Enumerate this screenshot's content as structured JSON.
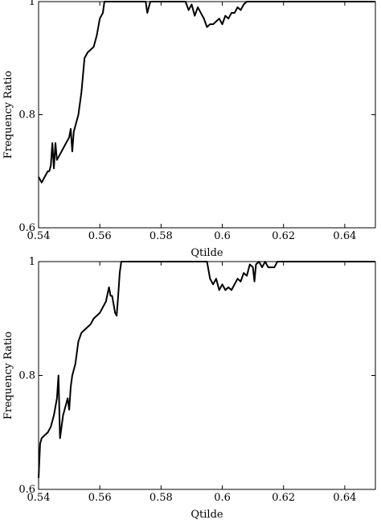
{
  "chart_data": [
    {
      "type": "line",
      "xlabel": "Qtilde",
      "ylabel": "Frequency Ratio",
      "xlim": [
        0.54,
        0.65
      ],
      "ylim": [
        0.6,
        1.0
      ],
      "xticks": [
        0.54,
        0.56,
        0.58,
        0.6,
        0.62,
        0.64
      ],
      "xtick_labels": [
        "0.54",
        "0.56",
        "0.58",
        "0.6",
        "0.62",
        "0.64"
      ],
      "yticks": [
        0.6,
        0.8,
        1.0
      ],
      "ytick_labels": [
        "0.6",
        "0.8",
        "1"
      ],
      "grid": false,
      "series": [
        {
          "x": [
            0.54,
            0.541,
            0.542,
            0.543,
            0.5435,
            0.544,
            0.5445,
            0.545,
            0.5455,
            0.546,
            0.547,
            0.548,
            0.549,
            0.55,
            0.5505,
            0.551,
            0.5515,
            0.552,
            0.553,
            0.554,
            0.555,
            0.556,
            0.557,
            0.558,
            0.559,
            0.56,
            0.561,
            0.5615,
            0.562,
            0.57,
            0.575,
            0.5755,
            0.576,
            0.5765,
            0.58,
            0.588,
            0.589,
            0.59,
            0.591,
            0.592,
            0.593,
            0.594,
            0.595,
            0.596,
            0.597,
            0.598,
            0.599,
            0.6,
            0.601,
            0.602,
            0.603,
            0.604,
            0.605,
            0.606,
            0.607,
            0.608,
            0.62,
            0.65
          ],
          "y": [
            0.69,
            0.68,
            0.69,
            0.7,
            0.7,
            0.71,
            0.75,
            0.705,
            0.75,
            0.72,
            0.73,
            0.74,
            0.75,
            0.76,
            0.775,
            0.735,
            0.77,
            0.78,
            0.8,
            0.84,
            0.9,
            0.91,
            0.915,
            0.92,
            0.94,
            0.97,
            0.98,
            1.0,
            1.0,
            1.0,
            1.0,
            0.98,
            0.99,
            1.0,
            1.0,
            1.0,
            0.985,
            0.995,
            0.975,
            0.99,
            0.98,
            0.97,
            0.955,
            0.96,
            0.96,
            0.965,
            0.97,
            0.96,
            0.975,
            0.97,
            0.98,
            0.98,
            0.99,
            0.985,
            0.995,
            1.0,
            1.0,
            1.0
          ]
        }
      ]
    },
    {
      "type": "line",
      "xlabel": "Qtilde",
      "ylabel": "Frequency Ratio",
      "xlim": [
        0.54,
        0.65
      ],
      "ylim": [
        0.6,
        1.0
      ],
      "xticks": [
        0.54,
        0.56,
        0.58,
        0.6,
        0.62,
        0.64
      ],
      "xtick_labels": [
        "0.54",
        "0.56",
        "0.58",
        "0.6",
        "0.62",
        "0.64"
      ],
      "yticks": [
        0.6,
        0.8,
        1.0
      ],
      "ytick_labels": [
        "0.6",
        "0.8",
        "1"
      ],
      "grid": false,
      "series": [
        {
          "x": [
            0.54,
            0.5405,
            0.541,
            0.542,
            0.543,
            0.544,
            0.545,
            0.546,
            0.5465,
            0.547,
            0.548,
            0.549,
            0.5495,
            0.55,
            0.5505,
            0.551,
            0.552,
            0.553,
            0.554,
            0.555,
            0.556,
            0.557,
            0.558,
            0.559,
            0.56,
            0.561,
            0.562,
            0.563,
            0.5635,
            0.564,
            0.565,
            0.5655,
            0.566,
            0.5665,
            0.567,
            0.57,
            0.59,
            0.595,
            0.596,
            0.597,
            0.598,
            0.599,
            0.6,
            0.601,
            0.602,
            0.603,
            0.604,
            0.605,
            0.606,
            0.607,
            0.608,
            0.609,
            0.61,
            0.6105,
            0.611,
            0.612,
            0.613,
            0.614,
            0.615,
            0.616,
            0.617,
            0.618,
            0.63,
            0.65
          ],
          "y": [
            0.62,
            0.68,
            0.69,
            0.695,
            0.7,
            0.71,
            0.73,
            0.76,
            0.8,
            0.69,
            0.73,
            0.75,
            0.76,
            0.74,
            0.78,
            0.8,
            0.82,
            0.86,
            0.875,
            0.88,
            0.885,
            0.89,
            0.9,
            0.905,
            0.91,
            0.92,
            0.93,
            0.955,
            0.94,
            0.94,
            0.91,
            0.905,
            0.94,
            0.98,
            1.0,
            1.0,
            1.0,
            1.0,
            0.97,
            0.96,
            0.97,
            0.95,
            0.96,
            0.95,
            0.955,
            0.95,
            0.96,
            0.97,
            0.965,
            0.98,
            0.975,
            0.995,
            0.99,
            0.965,
            0.995,
            1.0,
            0.99,
            1.0,
            0.99,
            0.99,
            0.99,
            1.0,
            1.0,
            1.0
          ]
        }
      ]
    }
  ]
}
